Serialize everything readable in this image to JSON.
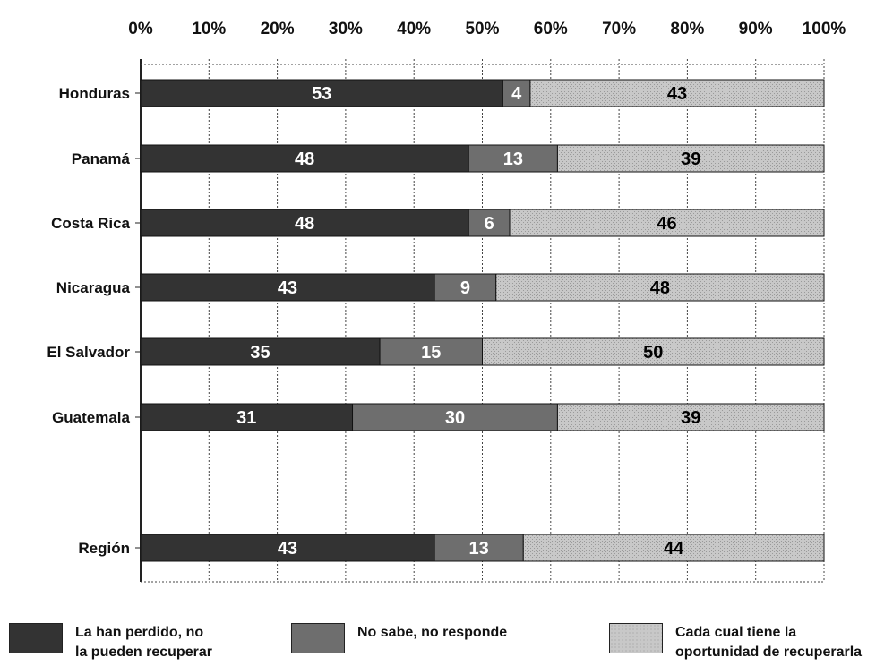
{
  "chart_data": {
    "type": "bar",
    "orientation": "horizontal",
    "stacked": "percent",
    "categories": [
      "Honduras",
      "Panamá",
      "Costa Rica",
      "Nicaragua",
      "El Salvador",
      "Guatemala",
      "Región"
    ],
    "x_ticks": [
      "0%",
      "10%",
      "20%",
      "30%",
      "40%",
      "50%",
      "60%",
      "70%",
      "80%",
      "90%",
      "100%"
    ],
    "xlim": [
      0,
      100
    ],
    "grid": true,
    "legend_position": "bottom",
    "series": [
      {
        "name": "La han perdido, no la pueden recuperar",
        "values": [
          53,
          48,
          48,
          43,
          35,
          31,
          43
        ]
      },
      {
        "name": "No sabe, no responde",
        "values": [
          4,
          13,
          6,
          9,
          15,
          30,
          13
        ]
      },
      {
        "name": "Cada cual tiene la oportunidad de recuperarla",
        "values": [
          43,
          39,
          46,
          48,
          50,
          39,
          44
        ]
      }
    ],
    "colors": [
      "#333333",
      "#6e6e6e",
      "#c8c8c8"
    ],
    "label_colors": [
      "#ffffff",
      "#ffffff",
      "#000000"
    ]
  },
  "legend": [
    {
      "line1": "La han perdido, no",
      "line2": "la pueden recuperar",
      "color": "#333333"
    },
    {
      "line1": "No sabe, no responde",
      "line2": "",
      "color": "#6e6e6e"
    },
    {
      "line1": "Cada cual tiene la",
      "line2": "oportunidad de recuperarla",
      "color": "#c8c8c8"
    }
  ]
}
